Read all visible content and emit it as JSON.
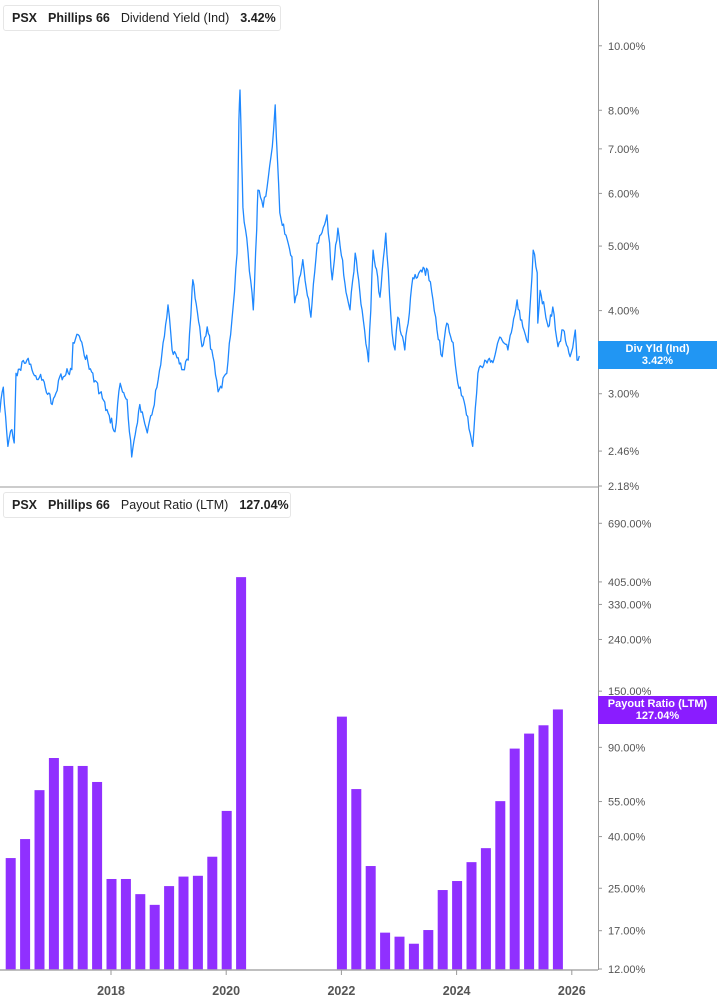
{
  "colors": {
    "yield": "#1e88ff",
    "payout": "#9030ff",
    "badge_yield": "#2196f3",
    "badge_payout": "#8a1cff"
  },
  "top_legend": {
    "ticker": "PSX",
    "company": "Phillips 66",
    "metric": "Dividend Yield (Ind)",
    "value": "3.42%"
  },
  "top_badge": {
    "label": "Div Yld (Ind)",
    "value": "3.42%"
  },
  "bottom_legend": {
    "ticker": "PSX",
    "company": "Phillips 66",
    "metric": "Payout Ratio (LTM)",
    "value": "127.04%"
  },
  "bottom_badge": {
    "label": "Payout Ratio (LTM)",
    "value": "127.04%"
  },
  "chart_data": [
    {
      "type": "line",
      "title": "PSX Phillips 66 Dividend Yield (Ind)",
      "y_scale": "log",
      "ylim": [
        2.18,
        11.0
      ],
      "y_ticks": [
        2.18,
        2.46,
        3.0,
        4.0,
        5.0,
        6.0,
        7.0,
        8.0,
        10.0
      ],
      "y_tick_labels": [
        "2.18%",
        "2.46%",
        "3.00%",
        "4.00%",
        "5.00%",
        "6.00%",
        "7.00%",
        "8.00%",
        "10.00%"
      ],
      "xlim": [
        2016.07,
        2026.45
      ],
      "series": [
        {
          "name": "Dividend Yield (Ind)",
          "x": [
            2016.07,
            2016.13,
            2016.21,
            2016.28,
            2016.32,
            2016.35,
            2016.54,
            2016.65,
            2016.82,
            2016.98,
            2017.11,
            2017.32,
            2017.34,
            2017.43,
            2017.6,
            2017.81,
            2017.93,
            2018.07,
            2018.16,
            2018.28,
            2018.36,
            2018.5,
            2018.63,
            2018.73,
            2018.82,
            2018.99,
            2019.06,
            2019.23,
            2019.34,
            2019.41,
            2019.42,
            2019.58,
            2019.67,
            2019.77,
            2019.86,
            2020.01,
            2020.12,
            2020.19,
            2020.22,
            2020.24,
            2020.27,
            2020.29,
            2020.38,
            2020.47,
            2020.53,
            2020.55,
            2020.64,
            2020.71,
            2020.8,
            2020.85,
            2020.93,
            2021.06,
            2021.14,
            2021.19,
            2021.33,
            2021.47,
            2021.58,
            2021.75,
            2021.84,
            2021.94,
            2022.1,
            2022.15,
            2022.24,
            2022.38,
            2022.47,
            2022.55,
            2022.67,
            2022.77,
            2022.88,
            2022.93,
            2022.98,
            2023.1,
            2023.24,
            2023.4,
            2023.5,
            2023.59,
            2023.66,
            2023.75,
            2023.83,
            2023.94,
            2024.02,
            2024.15,
            2024.28,
            2024.37,
            2024.49,
            2024.63,
            2024.75,
            2024.89,
            2025.05,
            2025.15,
            2025.24,
            2025.33,
            2025.4,
            2025.41,
            2025.45,
            2025.59,
            2025.67,
            2025.76,
            2025.85,
            2025.97,
            2026.06,
            2026.09,
            2026.13
          ],
          "y": [
            2.81,
            3.07,
            2.5,
            2.65,
            2.53,
            3.22,
            3.37,
            3.22,
            3.15,
            2.89,
            3.18,
            3.26,
            3.58,
            3.68,
            3.34,
            3.01,
            2.84,
            2.63,
            3.11,
            2.94,
            2.41,
            2.89,
            2.62,
            2.84,
            3.15,
            4.08,
            3.49,
            3.26,
            3.37,
            4.34,
            4.45,
            3.53,
            3.78,
            3.41,
            3.02,
            3.22,
            4.05,
            4.88,
            7.74,
            8.58,
            6.67,
            5.72,
            4.88,
            4.01,
            5.29,
            6.07,
            5.72,
            6.13,
            7.05,
            8.15,
            5.61,
            5.11,
            4.82,
            4.11,
            4.77,
            3.91,
            5.05,
            5.57,
            4.45,
            5.32,
            4.19,
            4.01,
            4.88,
            3.87,
            3.35,
            4.93,
            4.19,
            5.23,
            3.7,
            3.49,
            3.91,
            3.49,
            4.48,
            4.57,
            4.6,
            4.15,
            3.74,
            3.41,
            3.83,
            3.58,
            3.11,
            2.87,
            2.5,
            3.22,
            3.37,
            3.34,
            3.65,
            3.49,
            4.15,
            3.78,
            3.58,
            4.93,
            4.56,
            3.83,
            4.29,
            3.78,
            4.05,
            3.53,
            3.74,
            3.41,
            3.74,
            3.37,
            3.42
          ]
        }
      ]
    },
    {
      "type": "bar",
      "title": "PSX Phillips 66 Payout Ratio (LTM)",
      "y_scale": "log",
      "ylim": [
        11.4,
        880
      ],
      "y_ticks": [
        12,
        17,
        25,
        40,
        55,
        90,
        125,
        150,
        240,
        330,
        405,
        690
      ],
      "y_tick_labels": [
        "12.00%",
        "17.00%",
        "25.00%",
        "40.00%",
        "55.00%",
        "90.00%",
        "125.00%",
        "150.00%",
        "240.00%",
        "330.00%",
        "405.00%",
        "690.00%"
      ],
      "x_ticks": [
        2018,
        2020,
        2022,
        2024,
        2026
      ],
      "x_tick_labels": [
        "2018",
        "2020",
        "2022",
        "2024",
        "2026"
      ],
      "series": [
        {
          "name": "Payout Ratio (LTM)",
          "x": [
            2016.25,
            2016.5,
            2016.75,
            2017.0,
            2017.25,
            2017.5,
            2017.75,
            2018.0,
            2018.25,
            2018.5,
            2018.75,
            2019.0,
            2019.25,
            2019.5,
            2019.75,
            2020.0,
            2020.25,
            2022.0,
            2022.25,
            2022.5,
            2022.75,
            2023.0,
            2023.25,
            2023.5,
            2023.75,
            2024.0,
            2024.25,
            2024.5,
            2024.75,
            2025.0,
            2025.25,
            2025.5,
            2025.75
          ],
          "y": [
            32.9,
            39.1,
            61,
            81.7,
            76,
            76,
            65.7,
            27.2,
            27.2,
            23.7,
            21.5,
            25.5,
            27.8,
            28,
            33.3,
            50.5,
            423,
            119,
            61.6,
            30.6,
            16.7,
            16.1,
            15.1,
            17.1,
            24.6,
            26.7,
            31.7,
            36,
            55.2,
            89,
            102,
            110,
            127.04
          ]
        }
      ]
    }
  ]
}
